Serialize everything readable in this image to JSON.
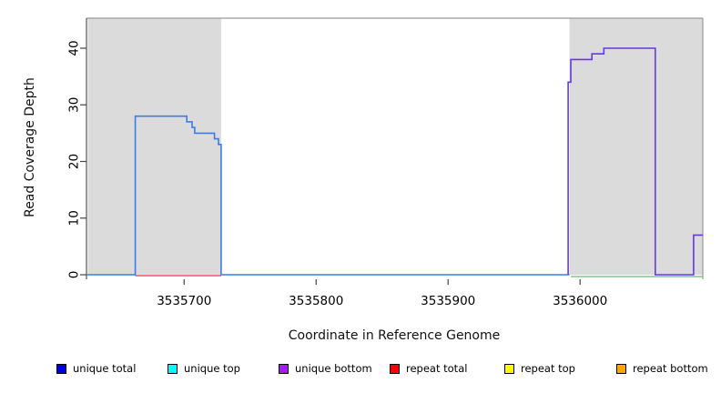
{
  "chart_data": {
    "type": "line",
    "title": "",
    "xlabel": "Coordinate in Reference Genome",
    "ylabel": "Read Coverage Depth",
    "xlim": [
      3535626,
      3536093
    ],
    "ylim": [
      0,
      45.3
    ],
    "x_ticks": [
      3535700,
      3535800,
      3535900,
      3536000
    ],
    "x_tick_labels": [
      "3535700",
      "3535800",
      "3535900",
      "3536000"
    ],
    "y_ticks": [
      0,
      10,
      20,
      30,
      40
    ],
    "y_tick_labels": [
      "0",
      "10",
      "20",
      "30",
      "40"
    ],
    "grid": false,
    "legend_position": "bottom",
    "shaded_regions": [
      {
        "name": "left-gray-region",
        "x0": 3535627,
        "x1": 3535728,
        "color": "#dbdbdb"
      },
      {
        "name": "right-gray-region",
        "x0": 3535992,
        "x1": 3536093,
        "color": "#dbdbdb"
      }
    ],
    "series": [
      {
        "name": "unique total (left block)",
        "color": "#3d7be8",
        "width": 1.6,
        "dy": 0,
        "points": [
          [
            3535626,
            0
          ],
          [
            3535663,
            0
          ],
          [
            3535663,
            28
          ],
          [
            3535702,
            28
          ],
          [
            3535702,
            27
          ],
          [
            3535706,
            27
          ],
          [
            3535706,
            26
          ],
          [
            3535708,
            26
          ],
          [
            3535708,
            25
          ],
          [
            3535723,
            25
          ],
          [
            3535723,
            24
          ],
          [
            3535726,
            24
          ],
          [
            3535726,
            23
          ],
          [
            3535728,
            23
          ],
          [
            3535728,
            0
          ],
          [
            3535992,
            0
          ]
        ]
      },
      {
        "name": "unique bottom (right block)",
        "color": "#6636e8",
        "width": 1.6,
        "dy": 0,
        "points": [
          [
            3535991,
            0
          ],
          [
            3535991,
            34
          ],
          [
            3535993,
            34
          ],
          [
            3535993,
            38
          ],
          [
            3536009,
            38
          ],
          [
            3536009,
            39
          ],
          [
            3536018,
            39
          ],
          [
            3536018,
            40
          ],
          [
            3536057,
            40
          ],
          [
            3536057,
            0
          ],
          [
            3536086,
            0
          ],
          [
            3536086,
            7
          ],
          [
            3536093,
            7
          ]
        ]
      },
      {
        "name": "repeat total baseline",
        "color": "#e8304a",
        "width": 1.2,
        "dy": 1,
        "points": [
          [
            3535663,
            0
          ],
          [
            3535728,
            0
          ]
        ]
      },
      {
        "name": "green baseline feature",
        "color": "#6cbc6c",
        "width": 1.2,
        "dy": 2,
        "points": [
          [
            3535993,
            0
          ],
          [
            3536093,
            0
          ]
        ]
      }
    ],
    "legend": [
      {
        "label": "unique total",
        "color": "#0000dd"
      },
      {
        "label": "unique top",
        "color": "#00ffff"
      },
      {
        "label": "unique bottom",
        "color": "#a020f0"
      },
      {
        "label": "repeat total",
        "color": "#ff0000"
      },
      {
        "label": "repeat top",
        "color": "#ffff00"
      },
      {
        "label": "repeat bottom",
        "color": "#ffa500"
      }
    ]
  }
}
